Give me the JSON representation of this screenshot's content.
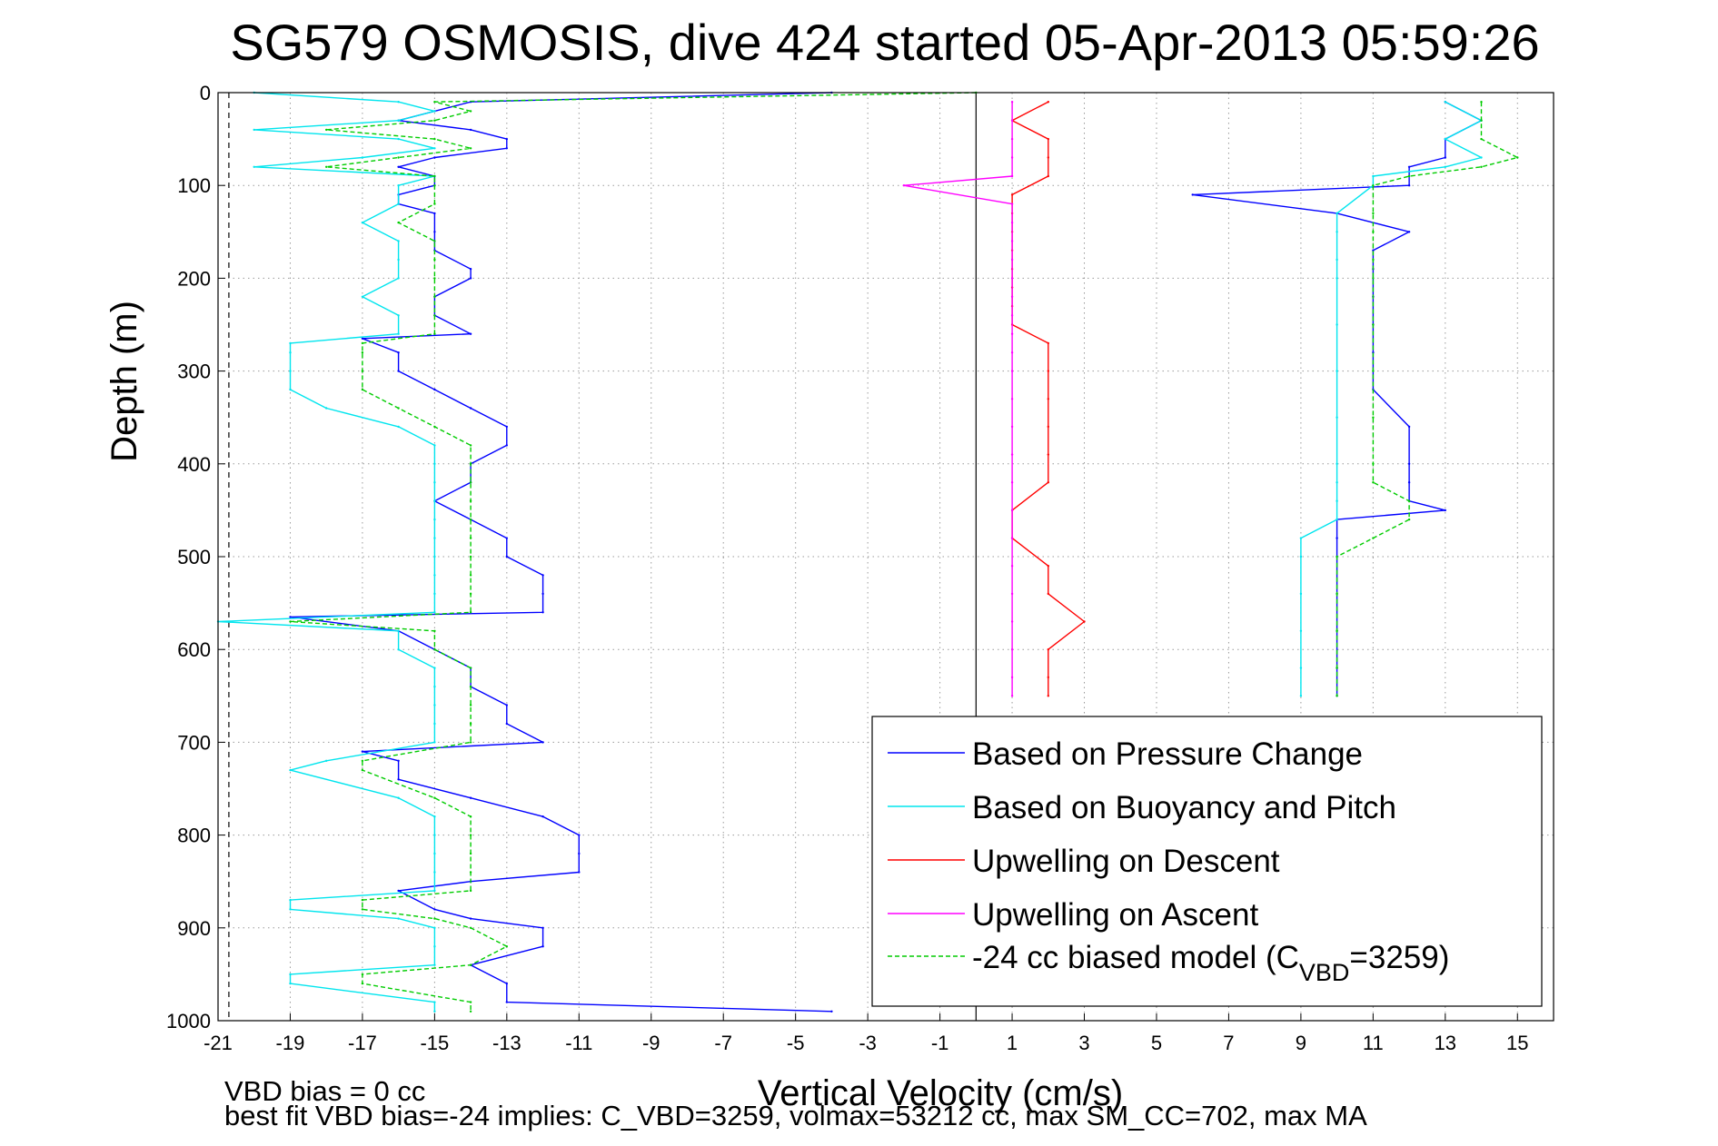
{
  "chart_data": {
    "type": "line",
    "title": "SG579 OSMOSIS, dive 424 started 05-Apr-2013 05:59:26",
    "xlabel": "Vertical Velocity (cm/s)",
    "ylabel": "Depth (m)",
    "xlim": [
      -21,
      16
    ],
    "ylim": [
      0,
      1000
    ],
    "y_reversed": true,
    "grid": true,
    "legend_position": "bottom-right",
    "x_ticks": [
      "-21",
      "-19",
      "-17",
      "-15",
      "-13",
      "-11",
      "-9",
      "-7",
      "-5",
      "-3",
      "-1",
      "1",
      "3",
      "5",
      "7",
      "9",
      "11",
      "13",
      "15"
    ],
    "y_ticks": [
      "0",
      "100",
      "200",
      "300",
      "400",
      "500",
      "600",
      "700",
      "800",
      "900",
      "1000"
    ],
    "reference_lines": [
      {
        "axis": "x",
        "value": 0,
        "style": "solid",
        "color": "#000000"
      },
      {
        "axis": "x",
        "value": -20.7,
        "style": "dashed",
        "color": "#000000"
      }
    ],
    "series": [
      {
        "name": "Based on Pressure Change",
        "color": "#0000ff",
        "style": "solid",
        "segments": [
          {
            "depth": [
              0,
              10,
              20,
              30,
              40,
              50,
              60,
              70,
              80,
              90,
              100,
              110,
              120,
              130,
              150,
              170,
              190,
              200,
              220,
              240,
              260,
              265,
              280,
              300,
              320,
              340,
              360,
              380,
              400,
              420,
              440,
              460,
              480,
              500,
              520,
              540,
              560,
              565,
              580,
              600,
              620,
              640,
              660,
              680,
              700,
              710,
              720,
              740,
              760,
              780,
              800,
              820,
              840,
              850,
              860,
              880,
              890,
              900,
              920,
              940,
              960,
              980,
              990
            ],
            "velocity": [
              -4,
              -14,
              -15,
              -16,
              -14,
              -13,
              -13,
              -15,
              -16,
              -15,
              -15,
              -16,
              -16,
              -15,
              -15,
              -15,
              -14,
              -14,
              -15,
              -15,
              -14,
              -17,
              -16,
              -16,
              -15,
              -14,
              -13,
              -13,
              -14,
              -14,
              -15,
              -14,
              -13,
              -13,
              -12,
              -12,
              -12,
              -19,
              -16,
              -15,
              -14,
              -14,
              -13,
              -13,
              -12,
              -17,
              -16,
              -16,
              -14,
              -12,
              -11,
              -11,
              -11,
              -14,
              -16,
              -15,
              -14,
              -12,
              -12,
              -14,
              -13,
              -13,
              -4
            ]
          },
          {
            "depth": [
              10,
              30,
              50,
              70,
              80,
              90,
              100,
              110,
              130,
              150,
              170,
              190,
              220,
              250,
              280,
              320,
              360,
              400,
              420,
              440,
              450,
              460,
              480,
              500,
              540,
              580,
              620,
              650
            ],
            "velocity": [
              13,
              14,
              13,
              13,
              12,
              12,
              12,
              6,
              10,
              12,
              11,
              11,
              11,
              11,
              11,
              11,
              12,
              12,
              12,
              12,
              13,
              10,
              10,
              10,
              10,
              10,
              10,
              10
            ]
          }
        ]
      },
      {
        "name": "Based on Buoyancy and Pitch",
        "color": "#00e5ee",
        "style": "solid",
        "segments": [
          {
            "depth": [
              0,
              10,
              20,
              30,
              40,
              50,
              60,
              70,
              80,
              90,
              100,
              120,
              140,
              160,
              180,
              200,
              220,
              240,
              260,
              270,
              280,
              300,
              320,
              340,
              360,
              380,
              400,
              420,
              440,
              460,
              480,
              500,
              520,
              540,
              560,
              570,
              580,
              600,
              620,
              640,
              660,
              680,
              700,
              720,
              730,
              760,
              780,
              800,
              820,
              840,
              860,
              870,
              880,
              890,
              900,
              920,
              940,
              950,
              960,
              980,
              990
            ],
            "velocity": [
              -20,
              -16,
              -15,
              -16,
              -20,
              -16,
              -15,
              -17,
              -20,
              -15,
              -16,
              -16,
              -17,
              -16,
              -16,
              -16,
              -17,
              -16,
              -16,
              -19,
              -19,
              -19,
              -19,
              -18,
              -16,
              -15,
              -15,
              -15,
              -15,
              -15,
              -15,
              -15,
              -15,
              -15,
              -15,
              -21,
              -16,
              -16,
              -15,
              -15,
              -15,
              -15,
              -15,
              -18,
              -19,
              -16,
              -15,
              -15,
              -15,
              -15,
              -15,
              -19,
              -19,
              -16,
              -15,
              -15,
              -15,
              -19,
              -19,
              -15,
              -15
            ]
          },
          {
            "depth": [
              10,
              30,
              50,
              70,
              80,
              90,
              100,
              130,
              150,
              180,
              200,
              250,
              300,
              350,
              400,
              420,
              440,
              460,
              480,
              500,
              540,
              580,
              620,
              650
            ],
            "velocity": [
              13,
              14,
              13,
              14,
              13,
              11,
              11,
              10,
              10,
              10,
              10,
              10,
              10,
              10,
              10,
              10,
              10,
              10,
              9,
              9,
              9,
              9,
              9,
              9
            ]
          }
        ]
      },
      {
        "name": "Upwelling on Descent",
        "color": "#ff0000",
        "style": "solid",
        "segments": [
          {
            "depth": [
              10,
              30,
              50,
              70,
              90,
              110,
              130,
              150,
              170,
              190,
              210,
              230,
              250,
              270,
              300,
              330,
              360,
              390,
              420,
              450,
              480,
              510,
              540,
              570,
              600,
              630,
              650
            ],
            "velocity": [
              2,
              1,
              2,
              2,
              2,
              1,
              1,
              1,
              1,
              1,
              1,
              1,
              1,
              2,
              2,
              2,
              2,
              2,
              2,
              1,
              1,
              2,
              2,
              3,
              2,
              2,
              2
            ]
          }
        ]
      },
      {
        "name": "Upwelling on Ascent",
        "color": "#ff00ff",
        "style": "solid",
        "segments": [
          {
            "depth": [
              10,
              30,
              50,
              70,
              90,
              100,
              120,
              140,
              160,
              180,
              200,
              220,
              240,
              260,
              280,
              300,
              330,
              360,
              390,
              420,
              450,
              480,
              510,
              540,
              570,
              600,
              630,
              650
            ],
            "velocity": [
              1,
              1,
              1,
              1,
              1,
              -2,
              1,
              1,
              1,
              1,
              1,
              1,
              1,
              1,
              1,
              1,
              1,
              1,
              1,
              1,
              1,
              1,
              1,
              1,
              1,
              1,
              1,
              1
            ]
          }
        ]
      },
      {
        "name": "-24 cc biased model (C_VBD=3259)",
        "color": "#00cc00",
        "style": "dashed",
        "segments": [
          {
            "depth": [
              0,
              10,
              20,
              30,
              40,
              50,
              60,
              70,
              80,
              90,
              100,
              120,
              140,
              160,
              180,
              200,
              220,
              240,
              260,
              270,
              280,
              300,
              320,
              340,
              360,
              380,
              400,
              420,
              440,
              460,
              480,
              500,
              520,
              540,
              560,
              570,
              580,
              600,
              620,
              640,
              660,
              680,
              700,
              720,
              730,
              760,
              780,
              800,
              820,
              840,
              860,
              870,
              880,
              890,
              900,
              920,
              940,
              950,
              960,
              980,
              990
            ],
            "velocity": [
              0,
              -15,
              -14,
              -15,
              -18,
              -15,
              -14,
              -16,
              -18,
              -15,
              -15,
              -15,
              -16,
              -15,
              -15,
              -15,
              -15,
              -15,
              -15,
              -17,
              -17,
              -17,
              -17,
              -16,
              -15,
              -14,
              -14,
              -14,
              -14,
              -14,
              -14,
              -14,
              -14,
              -14,
              -14,
              -19,
              -15,
              -15,
              -14,
              -14,
              -14,
              -14,
              -14,
              -17,
              -17,
              -15,
              -14,
              -14,
              -14,
              -14,
              -14,
              -17,
              -17,
              -15,
              -14,
              -13,
              -14,
              -17,
              -17,
              -14,
              -14
            ]
          },
          {
            "depth": [
              10,
              30,
              50,
              70,
              80,
              90,
              100,
              130,
              150,
              180,
              200,
              250,
              300,
              350,
              400,
              420,
              440,
              460,
              480,
              500,
              540,
              580,
              620,
              650
            ],
            "velocity": [
              14,
              14,
              14,
              15,
              14,
              12,
              11,
              11,
              11,
              11,
              11,
              11,
              11,
              11,
              11,
              11,
              12,
              12,
              11,
              10,
              10,
              10,
              10,
              10
            ]
          }
        ]
      }
    ],
    "legend_entries": [
      {
        "label": "Based on Pressure Change",
        "color": "#0000ff",
        "style": "solid"
      },
      {
        "label": "Based on Buoyancy and Pitch",
        "color": "#00e5ee",
        "style": "solid"
      },
      {
        "label": "Upwelling on Descent",
        "color": "#ff0000",
        "style": "solid"
      },
      {
        "label": "Upwelling on Ascent",
        "color": "#ff00ff",
        "style": "solid"
      },
      {
        "label_pre": "-24 cc biased model (C",
        "label_sub": "VBD",
        "label_post": "=3259)",
        "color": "#00cc00",
        "style": "dashed"
      }
    ],
    "annotations": [
      "VBD bias = 0 cc",
      "best fit VBD bias=-24 implies: C_VBD=3259, volmax=53212 cc, max SM_CC=702, max MA"
    ]
  }
}
